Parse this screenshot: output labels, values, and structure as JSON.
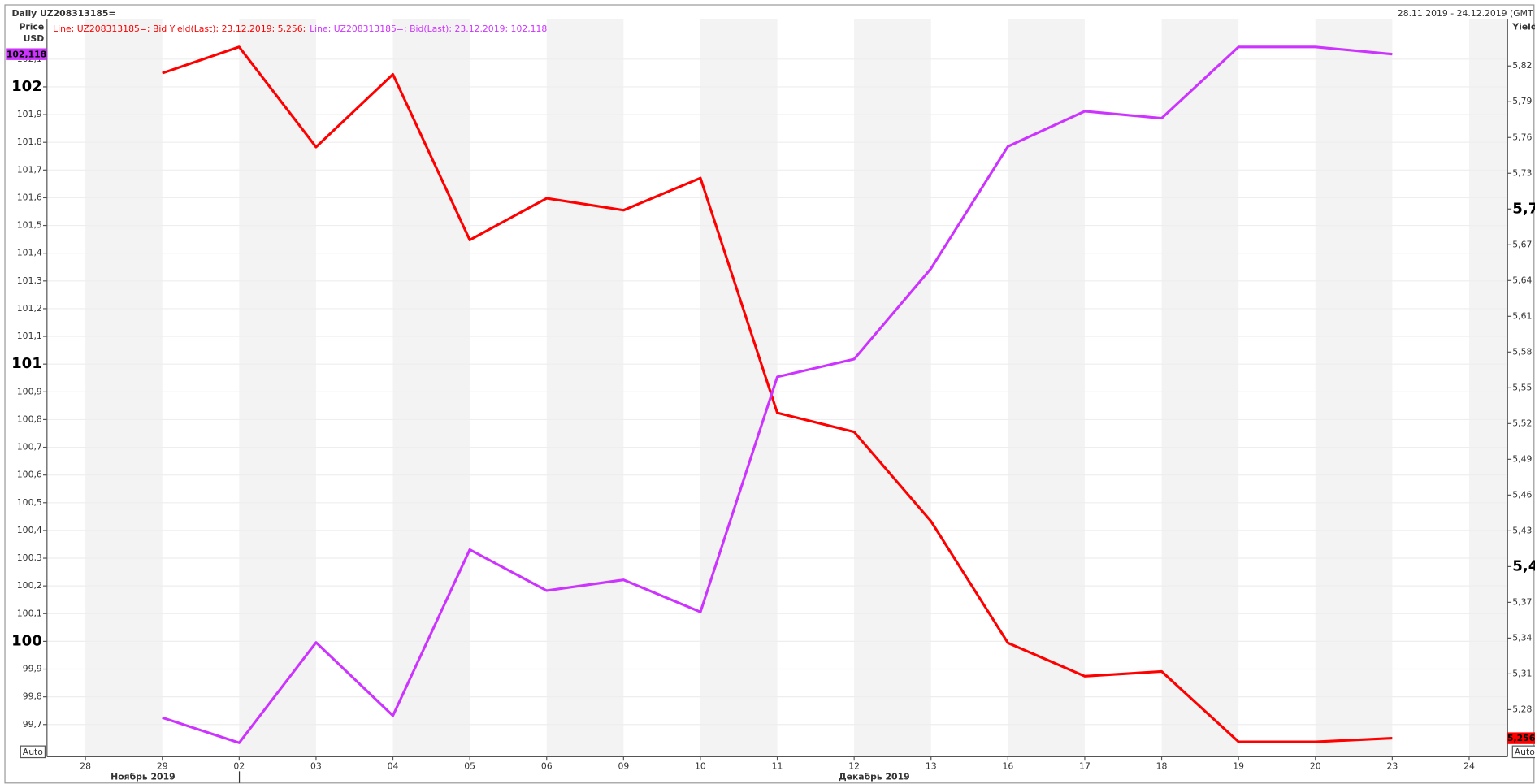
{
  "header": {
    "title": "Daily UZ208313185=",
    "range": "28.11.2019 - 24.12.2019 (GMT"
  },
  "chart_data": {
    "type": "line",
    "y_title": "Price",
    "y_unit": "USD",
    "y2_title": "Yield",
    "auto_button": "Auto",
    "month_labels": [
      "Ноябрь 2019",
      "Декабрь 2019"
    ],
    "categories": [
      "28",
      "29",
      "02",
      "03",
      "04",
      "05",
      "06",
      "09",
      "10",
      "11",
      "12",
      "13",
      "16",
      "17",
      "18",
      "19",
      "20",
      "23",
      "24"
    ],
    "series": [
      {
        "name": "Line; UZ208313185=; Bid Yield(Last); 23.12.2019; 5,256;",
        "color": "#ff0000",
        "axis": "y2",
        "values": [
          null,
          5.814,
          5.836,
          5.752,
          5.813,
          5.674,
          5.709,
          5.699,
          5.726,
          5.529,
          5.513,
          5.438,
          5.336,
          5.308,
          5.312,
          5.253,
          5.253,
          5.256,
          null
        ],
        "value_labels": [
          null,
          null,
          null,
          null,
          null,
          null,
          null,
          null,
          null,
          null,
          null,
          null,
          null,
          null,
          null,
          null,
          null,
          "5,256",
          null
        ]
      },
      {
        "name": "Line; UZ208313185=; Bid(Last); 23.12.2019; 102,118",
        "color": "#cc33ff",
        "axis": "y",
        "values": [
          null,
          99.725,
          99.634,
          99.996,
          99.732,
          100.331,
          100.183,
          100.222,
          100.106,
          100.954,
          101.018,
          101.345,
          101.785,
          101.912,
          101.887,
          102.144,
          102.144,
          102.118,
          null
        ],
        "value_labels": [
          null,
          null,
          null,
          null,
          null,
          null,
          null,
          null,
          null,
          null,
          null,
          null,
          null,
          null,
          null,
          null,
          null,
          "102,118",
          null
        ]
      }
    ],
    "ylim": [
      99.584,
      102.243
    ],
    "yticks": [
      {
        "value": 99.7,
        "label": "99,7"
      },
      {
        "value": 99.8,
        "label": "99,8"
      },
      {
        "value": 99.9,
        "label": "99,9"
      },
      100,
      {
        "value": 100.1,
        "label": "100,1"
      },
      {
        "value": 100.2,
        "label": "100,2"
      },
      {
        "value": 100.3,
        "label": "100,3"
      },
      {
        "value": 100.4,
        "label": "100,4"
      },
      {
        "value": 100.5,
        "label": "100,5"
      },
      {
        "value": 100.6,
        "label": "100,6"
      },
      {
        "value": 100.7,
        "label": "100,7"
      },
      {
        "value": 100.8,
        "label": "100,8"
      },
      {
        "value": 100.9,
        "label": "100,9"
      },
      101,
      {
        "value": 101.1,
        "label": "101,1"
      },
      {
        "value": 101.2,
        "label": "101,2"
      },
      {
        "value": 101.3,
        "label": "101,3"
      },
      {
        "value": 101.4,
        "label": "101,4"
      },
      {
        "value": 101.5,
        "label": "101,5"
      },
      {
        "value": 101.6,
        "label": "101,6"
      },
      {
        "value": 101.7,
        "label": "101,7"
      },
      {
        "value": 101.8,
        "label": "101,8"
      },
      {
        "value": 101.9,
        "label": "101,9"
      },
      102,
      {
        "value": 102.1,
        "label": "102,1"
      }
    ],
    "y2lim": [
      5.2405,
      5.859
    ],
    "y2ticks": [
      {
        "value": 5.28,
        "label": "5,28"
      },
      {
        "value": 5.31,
        "label": "5,31"
      },
      {
        "value": 5.34,
        "label": "5,34"
      },
      {
        "value": 5.37,
        "label": "5,37"
      },
      {
        "value": 5.4,
        "label": "5,4"
      },
      {
        "value": 5.43,
        "label": "5,43"
      },
      {
        "value": 5.46,
        "label": "5,46"
      },
      {
        "value": 5.49,
        "label": "5,49"
      },
      {
        "value": 5.52,
        "label": "5,52"
      },
      {
        "value": 5.55,
        "label": "5,55"
      },
      {
        "value": 5.58,
        "label": "5,58"
      },
      {
        "value": 5.61,
        "label": "5,61"
      },
      {
        "value": 5.64,
        "label": "5,64"
      },
      {
        "value": 5.67,
        "label": "5,67"
      },
      {
        "value": 5.7,
        "label": "5,7"
      },
      {
        "value": 5.73,
        "label": "5,73"
      },
      {
        "value": 5.76,
        "label": "5,76"
      },
      {
        "value": 5.79,
        "label": "5,79"
      },
      {
        "value": 5.82,
        "label": "5,82"
      }
    ],
    "grid": true
  }
}
